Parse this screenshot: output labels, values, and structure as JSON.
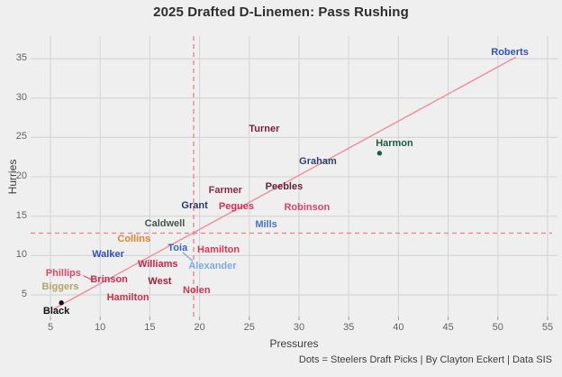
{
  "title": "2025 Drafted D-Linemen: Pass Rushing",
  "caption": "Dots = Steelers Draft Picks | By Clayton Eckert | Data SIS",
  "colors": {
    "background": "#efeff0",
    "gridline": "#d7d7d9",
    "tick_mark": "#9a9a9a",
    "trend_line": "#f28b96",
    "reference_dash": "#ee7f86",
    "title_text": "#2e2e2e",
    "axis_text": "#636363"
  },
  "chart_data": {
    "type": "scatter",
    "title": "2025 Drafted D-Linemen: Pass Rushing",
    "xlabel": "Pressures",
    "ylabel": "Hurries",
    "xlim": [
      3,
      56
    ],
    "ylim": [
      2.2,
      37.9
    ],
    "x_ticks": [
      5,
      10,
      15,
      20,
      25,
      30,
      35,
      40,
      45,
      50,
      55
    ],
    "y_ticks": [
      5,
      10,
      15,
      20,
      25,
      30,
      35
    ],
    "grid": true,
    "legend": false,
    "reference_lines": {
      "vline_x": 19.4,
      "hline_y": 12.85,
      "style": "dashed",
      "color": "#ee7f86"
    },
    "trend_line": {
      "x1": 5.3,
      "y1": 3.2,
      "x2": 51.8,
      "y2": 35.2,
      "color": "#f28b96"
    },
    "leader_segments": [
      {
        "x1": 8.3,
        "y1": 7.45,
        "x2": 9.3,
        "y2": 6.85,
        "color": "#e05060"
      },
      {
        "x1": 18.3,
        "y1": 10.4,
        "x2": 19.3,
        "y2": 9.3,
        "color": "#7d9bd4"
      }
    ],
    "points": [
      {
        "name": "Roberts",
        "pressures": 51.2,
        "hurries": 35.8,
        "color": "#3453bd",
        "steelers_pick": false
      },
      {
        "name": "Turner",
        "pressures": 26.5,
        "hurries": 26.1,
        "color": "#7c1e38",
        "steelers_pick": false
      },
      {
        "name": "Harmon",
        "pressures": 38.1,
        "hurries": 23.0,
        "color": "#1c5c41",
        "steelers_pick": true,
        "label_x": 39.6,
        "label_y": 24.3
      },
      {
        "name": "Graham",
        "pressures": 31.9,
        "hurries": 21.9,
        "color": "#2a4472",
        "steelers_pick": false
      },
      {
        "name": "Peebles",
        "pressures": 28.5,
        "hurries": 18.8,
        "color": "#66203d",
        "steelers_pick": false
      },
      {
        "name": "Farmer",
        "pressures": 22.6,
        "hurries": 18.3,
        "color": "#8c2b45",
        "steelers_pick": false
      },
      {
        "name": "Grant",
        "pressures": 19.5,
        "hurries": 16.3,
        "color": "#293a63",
        "steelers_pick": false
      },
      {
        "name": "Pegues",
        "pressures": 23.7,
        "hurries": 16.2,
        "color": "#d82e58",
        "steelers_pick": false
      },
      {
        "name": "Robinson",
        "pressures": 30.8,
        "hurries": 16.1,
        "color": "#e24064",
        "steelers_pick": false
      },
      {
        "name": "Caldwell",
        "pressures": 16.5,
        "hurries": 14.0,
        "color": "#45584b",
        "steelers_pick": false
      },
      {
        "name": "Mills",
        "pressures": 26.7,
        "hurries": 13.9,
        "color": "#4a74c9",
        "steelers_pick": false
      },
      {
        "name": "Collins",
        "pressures": 13.4,
        "hurries": 12.1,
        "color": "#e08432",
        "steelers_pick": false
      },
      {
        "name": "Toia",
        "pressures": 17.8,
        "hurries": 11.0,
        "color": "#3a62c6",
        "steelers_pick": false
      },
      {
        "name": "Hamilton",
        "pressures": 21.9,
        "hurries": 10.7,
        "color": "#d63a52",
        "steelers_pick": false
      },
      {
        "name": "Walker",
        "pressures": 10.8,
        "hurries": 10.1,
        "color": "#3050bd",
        "steelers_pick": false
      },
      {
        "name": "Williams",
        "pressures": 15.8,
        "hurries": 8.9,
        "color": "#c82744",
        "steelers_pick": false
      },
      {
        "name": "Alexander",
        "pressures": 21.3,
        "hurries": 8.7,
        "color": "#7fabdf",
        "steelers_pick": false
      },
      {
        "name": "Phillips",
        "pressures": 6.3,
        "hurries": 7.7,
        "color": "#e04a62",
        "steelers_pick": false
      },
      {
        "name": "Brinson",
        "pressures": 10.9,
        "hurries": 6.9,
        "color": "#cc2d4f",
        "steelers_pick": false
      },
      {
        "name": "West",
        "pressures": 16.0,
        "hurries": 6.7,
        "color": "#9e2136",
        "steelers_pick": false
      },
      {
        "name": "Biggers",
        "pressures": 6.0,
        "hurries": 6.0,
        "color": "#b3a469",
        "steelers_pick": false
      },
      {
        "name": "Nolen",
        "pressures": 19.7,
        "hurries": 5.6,
        "color": "#d33350",
        "steelers_pick": false
      },
      {
        "name": "Hamilton",
        "pressures": 12.8,
        "hurries": 4.7,
        "color": "#cb3148",
        "steelers_pick": false
      },
      {
        "name": "Black",
        "pressures": 6.1,
        "hurries": 4.0,
        "color": "#111111",
        "steelers_pick": true,
        "label_x": 5.6,
        "label_y": 2.9
      }
    ]
  }
}
